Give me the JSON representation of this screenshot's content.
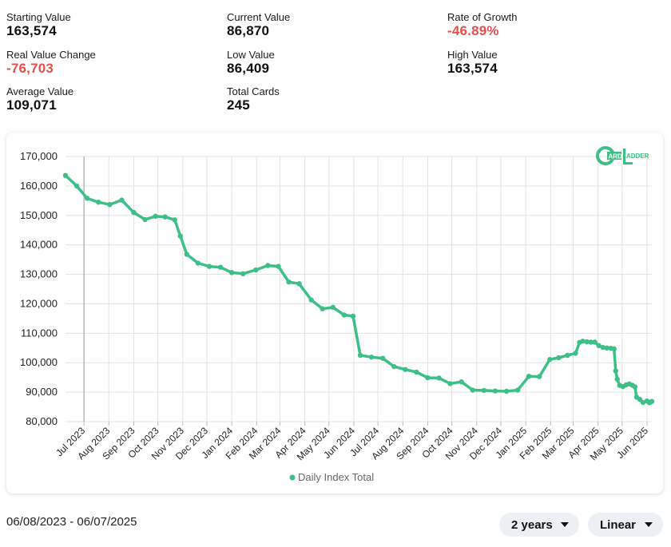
{
  "stats": {
    "starting_value": {
      "label": "Starting Value",
      "value": "163,574"
    },
    "current_value": {
      "label": "Current Value",
      "value": "86,870"
    },
    "rate_of_growth": {
      "label": "Rate of Growth",
      "value": "-46.89%"
    },
    "real_value_change": {
      "label": "Real Value Change",
      "value": "-76,703"
    },
    "low_value": {
      "label": "Low Value",
      "value": "86,409"
    },
    "high_value": {
      "label": "High Value",
      "value": "163,574"
    },
    "average_value": {
      "label": "Average Value",
      "value": "109,071"
    },
    "total_cards": {
      "label": "Total Cards",
      "value": "245"
    }
  },
  "colors": {
    "line": "#3dbf87",
    "negative": "#e2514f",
    "grid": "#e3e3e3"
  },
  "logo": {
    "letter": "C",
    "text": "ARD",
    "text2": "ADDER"
  },
  "footer": {
    "date_range": "06/08/2023 - 06/07/2025",
    "period_select": "2 years",
    "scale_select": "Linear"
  },
  "chart_data": {
    "type": "line",
    "ylim": [
      80000,
      170000
    ],
    "yticks": [
      170000,
      160000,
      150000,
      140000,
      130000,
      120000,
      110000,
      100000,
      90000,
      80000
    ],
    "ytick_labels": [
      "170,000",
      "160,000",
      "150,000",
      "140,000",
      "130,000",
      "120,000",
      "110,000",
      "100,000",
      "90,000",
      "80,000"
    ],
    "xlim": [
      "2023-06-08",
      "2025-06-07"
    ],
    "xticks": [
      "2023-07-01",
      "2023-08-01",
      "2023-09-01",
      "2023-10-01",
      "2023-11-01",
      "2023-12-01",
      "2024-01-01",
      "2024-02-01",
      "2024-03-01",
      "2024-04-01",
      "2024-05-01",
      "2024-06-01",
      "2024-07-01",
      "2024-08-01",
      "2024-09-01",
      "2024-10-01",
      "2024-11-01",
      "2024-12-01",
      "2025-01-01",
      "2025-02-01",
      "2025-03-01",
      "2025-04-01",
      "2025-05-01",
      "2025-06-01"
    ],
    "xtick_labels": [
      "Jul 2023",
      "Aug 2023",
      "Sep 2023",
      "Oct 2023",
      "Nov 2023",
      "Dec 2023",
      "Jan 2024",
      "Feb 2024",
      "Mar 2024",
      "Apr 2024",
      "May 2024",
      "Jun 2024",
      "Jul 2024",
      "Aug 2024",
      "Sep 2024",
      "Oct 2024",
      "Nov 2024",
      "Dec 2024",
      "Jan 2025",
      "Feb 2025",
      "Mar 2025",
      "Apr 2025",
      "May 2025",
      "Jun 2025"
    ],
    "hover_line_x": "2023-07-01",
    "legend": "bottom",
    "series": [
      {
        "name": "Daily Index Total",
        "x": [
          "2023-06-08",
          "2023-06-22",
          "2023-07-05",
          "2023-07-19",
          "2023-08-02",
          "2023-08-17",
          "2023-09-01",
          "2023-09-15",
          "2023-09-28",
          "2023-10-10",
          "2023-10-22",
          "2023-10-29",
          "2023-11-06",
          "2023-11-20",
          "2023-12-04",
          "2023-12-18",
          "2024-01-01",
          "2024-01-15",
          "2024-01-31",
          "2024-02-15",
          "2024-02-28",
          "2024-03-12",
          "2024-03-25",
          "2024-04-09",
          "2024-04-23",
          "2024-05-06",
          "2024-05-20",
          "2024-05-31",
          "2024-06-09",
          "2024-06-23",
          "2024-07-07",
          "2024-07-21",
          "2024-08-04",
          "2024-08-18",
          "2024-09-01",
          "2024-09-15",
          "2024-09-29",
          "2024-10-13",
          "2024-10-27",
          "2024-11-10",
          "2024-11-24",
          "2024-12-08",
          "2024-12-22",
          "2025-01-05",
          "2025-01-18",
          "2025-01-31",
          "2025-02-11",
          "2025-02-22",
          "2025-03-04",
          "2025-03-09",
          "2025-03-13",
          "2025-03-18",
          "2025-03-23",
          "2025-03-28",
          "2025-04-02",
          "2025-04-07",
          "2025-04-12",
          "2025-04-17",
          "2025-04-21",
          "2025-04-23",
          "2025-04-25",
          "2025-04-28",
          "2025-05-02",
          "2025-05-06",
          "2025-05-10",
          "2025-05-14",
          "2025-05-17",
          "2025-05-19",
          "2025-05-23",
          "2025-05-27",
          "2025-06-01",
          "2025-06-04",
          "2025-06-07"
        ],
        "y": [
          163574,
          160000,
          155800,
          154500,
          153700,
          155200,
          151000,
          148600,
          149700,
          149500,
          148500,
          143000,
          136800,
          133800,
          132700,
          132400,
          130600,
          130200,
          131500,
          133000,
          132700,
          127400,
          126800,
          121300,
          118300,
          118800,
          116200,
          115800,
          102500,
          101900,
          101500,
          98700,
          97700,
          96800,
          94900,
          94800,
          92900,
          93500,
          90700,
          90600,
          90400,
          90300,
          90700,
          95400,
          95300,
          101100,
          101700,
          102500,
          103200,
          106900,
          107300,
          107100,
          107000,
          107000,
          105800,
          105200,
          105000,
          104900,
          104700,
          97200,
          94400,
          92300,
          91900,
          92500,
          92800,
          92300,
          91800,
          88300,
          87600,
          86500,
          87000,
          86409,
          86870
        ]
      }
    ]
  }
}
